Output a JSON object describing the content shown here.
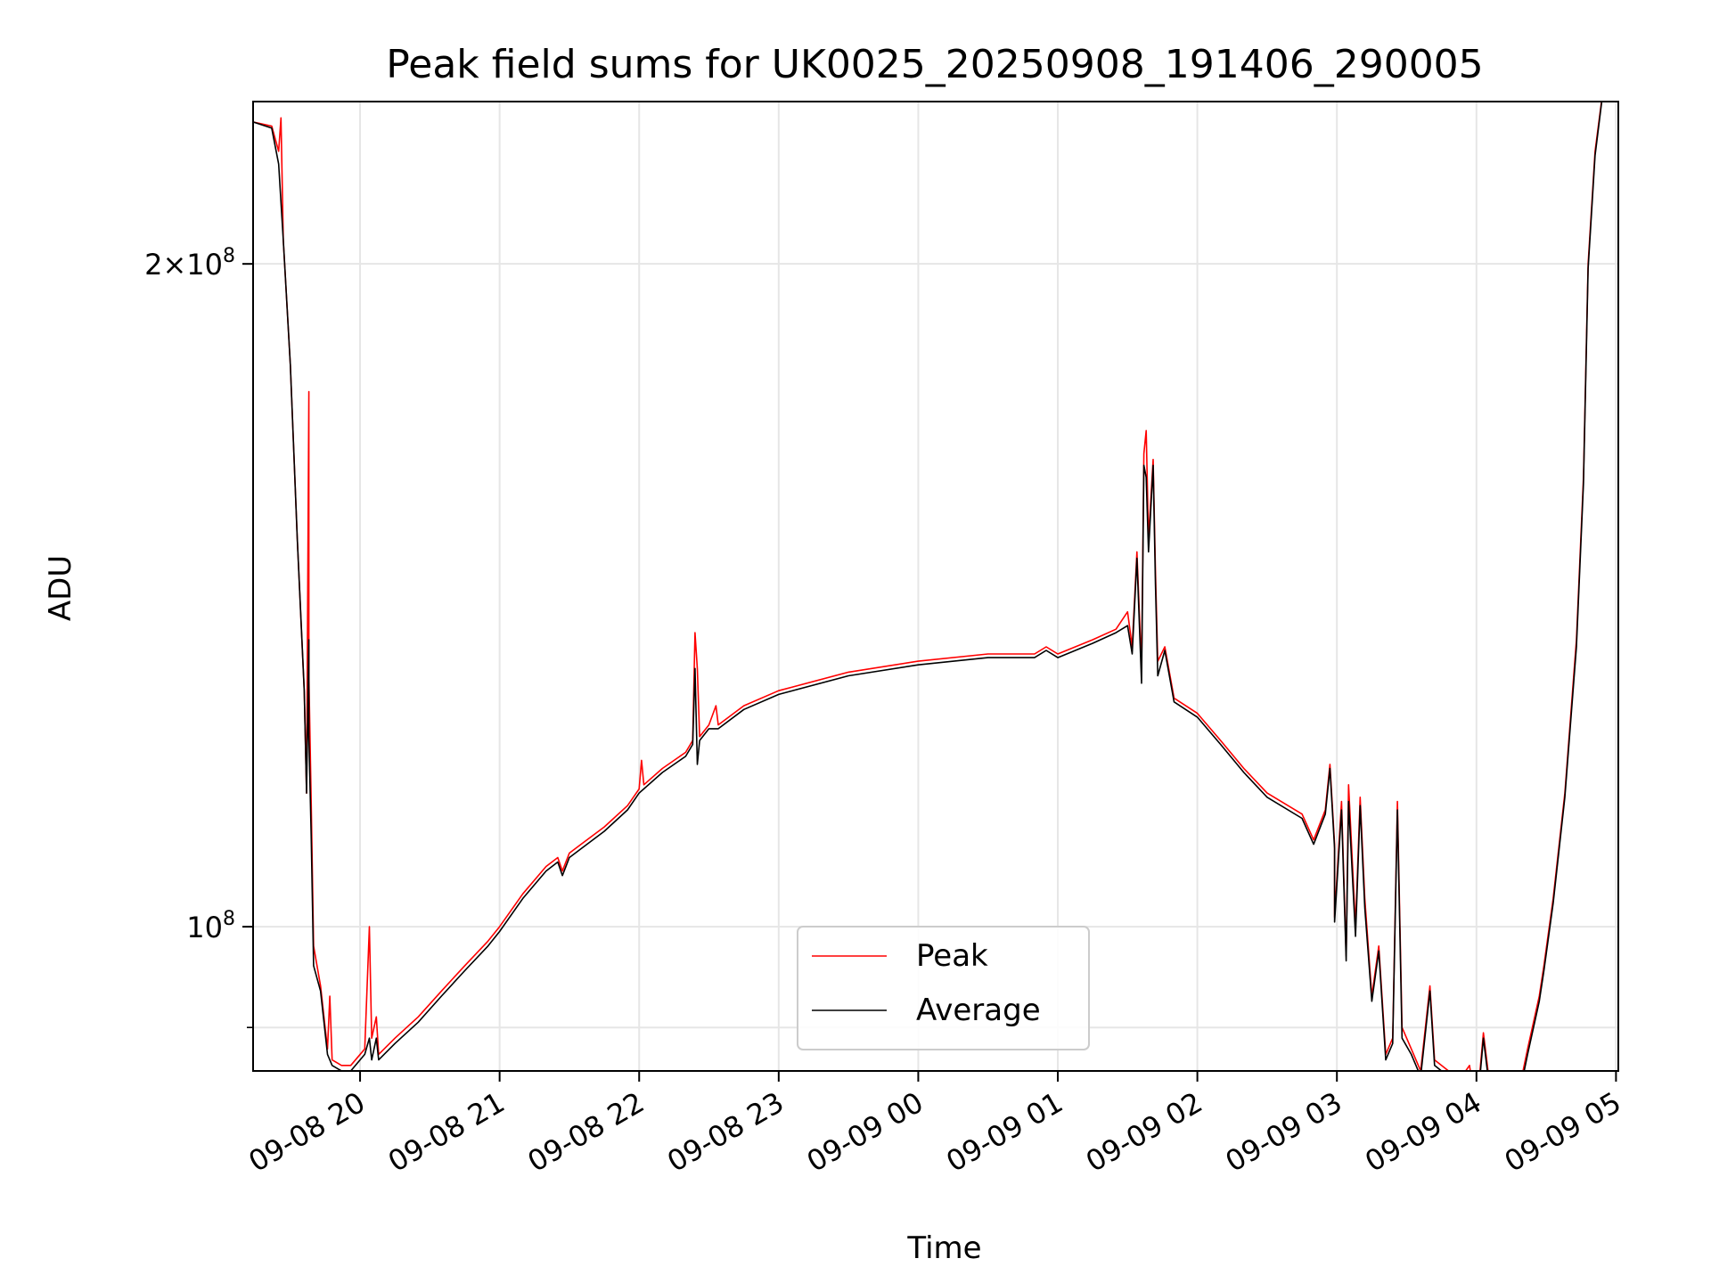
{
  "chart_data": {
    "type": "line",
    "title": "Peak field sums for UK0025_20250908_191406_290005",
    "xlabel": "Time",
    "ylabel": "ADU",
    "yscale": "log",
    "xlim": [
      "2025-09-08 19:14",
      "2025-09-09 05:01"
    ],
    "ylim": [
      86000000.0,
      237000000.0
    ],
    "grid": true,
    "legend_placement": "lower-center",
    "x_ticks": [
      "09-08 20",
      "09-08 21",
      "09-08 22",
      "09-08 23",
      "09-09 00",
      "09-09 01",
      "09-09 02",
      "09-09 03",
      "09-09 04",
      "09-09 05"
    ],
    "x_tick_times": [
      "2025-09-08 20:00",
      "2025-09-08 21:00",
      "2025-09-08 22:00",
      "2025-09-08 23:00",
      "2025-09-09 00:00",
      "2025-09-09 01:00",
      "2025-09-09 02:00",
      "2025-09-09 03:00",
      "2025-09-09 04:00",
      "2025-09-09 05:00"
    ],
    "y_ticks": [
      {
        "value": 200000000,
        "mantissa": "2",
        "exponent": "8"
      },
      {
        "value": 100000000,
        "mantissa": "",
        "exponent": "8"
      }
    ],
    "y_minor_ticks": [
      90000000
    ],
    "series": [
      {
        "name": "Peak",
        "color": "#ff0000",
        "points": [
          [
            "2025-09-08 19:14",
            232000000
          ],
          [
            "2025-09-08 19:22",
            231000000
          ],
          [
            "2025-09-08 19:25",
            225000000
          ],
          [
            "2025-09-08 19:26",
            233000000
          ],
          [
            "2025-09-08 19:27",
            205000000
          ],
          [
            "2025-09-08 19:30",
            180000000
          ],
          [
            "2025-09-08 19:33",
            150000000
          ],
          [
            "2025-09-08 19:36",
            128000000
          ],
          [
            "2025-09-08 19:37",
            115000000
          ],
          [
            "2025-09-08 19:38",
            175000000
          ],
          [
            "2025-09-08 19:38",
            130000000
          ],
          [
            "2025-09-08 19:39",
            114000000
          ],
          [
            "2025-09-08 19:40",
            98000000
          ],
          [
            "2025-09-08 19:43",
            94000000
          ],
          [
            "2025-09-08 19:46",
            88000000
          ],
          [
            "2025-09-08 19:47",
            93000000
          ],
          [
            "2025-09-08 19:48",
            87000000
          ],
          [
            "2025-09-08 19:52",
            86500000
          ],
          [
            "2025-09-08 19:56",
            86500000
          ],
          [
            "2025-09-08 20:02",
            88000000
          ],
          [
            "2025-09-08 20:04",
            100000000
          ],
          [
            "2025-09-08 20:05",
            89000000
          ],
          [
            "2025-09-08 20:07",
            91000000
          ],
          [
            "2025-09-08 20:08",
            87500000
          ],
          [
            "2025-09-08 20:15",
            89000000
          ],
          [
            "2025-09-08 20:25",
            91000000
          ],
          [
            "2025-09-08 20:35",
            93500000
          ],
          [
            "2025-09-08 20:45",
            96000000
          ],
          [
            "2025-09-08 20:55",
            98500000
          ],
          [
            "2025-09-08 21:00",
            100000000
          ],
          [
            "2025-09-08 21:10",
            103500000
          ],
          [
            "2025-09-08 21:20",
            106500000
          ],
          [
            "2025-09-08 21:25",
            107500000
          ],
          [
            "2025-09-08 21:27",
            106000000
          ],
          [
            "2025-09-08 21:30",
            108000000
          ],
          [
            "2025-09-08 21:35",
            109000000
          ],
          [
            "2025-09-08 21:45",
            111000000
          ],
          [
            "2025-09-08 21:55",
            113500000
          ],
          [
            "2025-09-08 22:00",
            115500000
          ],
          [
            "2025-09-08 22:01",
            119000000
          ],
          [
            "2025-09-08 22:02",
            116000000
          ],
          [
            "2025-09-08 22:10",
            118000000
          ],
          [
            "2025-09-08 22:20",
            120000000
          ],
          [
            "2025-09-08 22:23",
            121500000
          ],
          [
            "2025-09-08 22:24",
            136000000
          ],
          [
            "2025-09-08 22:25",
            131000000
          ],
          [
            "2025-09-08 22:26",
            122000000
          ],
          [
            "2025-09-08 22:30",
            123500000
          ],
          [
            "2025-09-08 22:33",
            126000000
          ],
          [
            "2025-09-08 22:34",
            123500000
          ],
          [
            "2025-09-08 22:45",
            126000000
          ],
          [
            "2025-09-08 23:00",
            128000000
          ],
          [
            "2025-09-08 23:30",
            130500000
          ],
          [
            "2025-09-09 00:00",
            132000000
          ],
          [
            "2025-09-09 00:30",
            133000000
          ],
          [
            "2025-09-09 00:50",
            133000000
          ],
          [
            "2025-09-09 00:55",
            134000000
          ],
          [
            "2025-09-09 01:00",
            133000000
          ],
          [
            "2025-09-09 01:15",
            135000000
          ],
          [
            "2025-09-09 01:25",
            136500000
          ],
          [
            "2025-09-09 01:30",
            139000000
          ],
          [
            "2025-09-09 01:32",
            134000000
          ],
          [
            "2025-09-09 01:34",
            148000000
          ],
          [
            "2025-09-09 01:36",
            131000000
          ],
          [
            "2025-09-09 01:37",
            164000000
          ],
          [
            "2025-09-09 01:38",
            168000000
          ],
          [
            "2025-09-09 01:39",
            150000000
          ],
          [
            "2025-09-09 01:41",
            163000000
          ],
          [
            "2025-09-09 01:42",
            145000000
          ],
          [
            "2025-09-09 01:43",
            132000000
          ],
          [
            "2025-09-09 01:46",
            134000000
          ],
          [
            "2025-09-09 01:50",
            127000000
          ],
          [
            "2025-09-09 02:00",
            125000000
          ],
          [
            "2025-09-09 02:10",
            121500000
          ],
          [
            "2025-09-09 02:20",
            118000000
          ],
          [
            "2025-09-09 02:30",
            115000000
          ],
          [
            "2025-09-09 02:45",
            112500000
          ],
          [
            "2025-09-09 02:50",
            109500000
          ],
          [
            "2025-09-09 02:55",
            113000000
          ],
          [
            "2025-09-09 02:57",
            118500000
          ],
          [
            "2025-09-09 02:59",
            109000000
          ],
          [
            "2025-09-09 02:59",
            101000000
          ],
          [
            "2025-09-09 03:02",
            114000000
          ],
          [
            "2025-09-09 03:04",
            97000000
          ],
          [
            "2025-09-09 03:05",
            116000000
          ],
          [
            "2025-09-09 03:08",
            100000000
          ],
          [
            "2025-09-09 03:10",
            114500000
          ],
          [
            "2025-09-09 03:12",
            103000000
          ],
          [
            "2025-09-09 03:15",
            93000000
          ],
          [
            "2025-09-09 03:18",
            98000000
          ],
          [
            "2025-09-09 03:21",
            87500000
          ],
          [
            "2025-09-09 03:24",
            89000000
          ],
          [
            "2025-09-09 03:26",
            114000000
          ],
          [
            "2025-09-09 03:28",
            90000000
          ],
          [
            "2025-09-09 03:32",
            88000000
          ],
          [
            "2025-09-09 03:36",
            86000000
          ],
          [
            "2025-09-09 03:40",
            94000000
          ],
          [
            "2025-09-09 03:42",
            87000000
          ],
          [
            "2025-09-09 03:48",
            86000000
          ],
          [
            "2025-09-09 03:52",
            85000000
          ],
          [
            "2025-09-09 03:57",
            86500000
          ],
          [
            "2025-09-09 04:00",
            82500000
          ],
          [
            "2025-09-09 04:03",
            89500000
          ],
          [
            "2025-09-09 04:05",
            86000000
          ],
          [
            "2025-09-09 04:08",
            84500000
          ],
          [
            "2025-09-09 04:11",
            86000000
          ],
          [
            "2025-09-09 04:14",
            83500000
          ],
          [
            "2025-09-09 04:18",
            84000000
          ],
          [
            "2025-09-09 04:22",
            88000000
          ],
          [
            "2025-09-09 04:27",
            93000000
          ],
          [
            "2025-09-09 04:29",
            96000000
          ],
          [
            "2025-09-09 04:33",
            103000000
          ],
          [
            "2025-09-09 04:38",
            115000000
          ],
          [
            "2025-09-09 04:43",
            135000000
          ],
          [
            "2025-09-09 04:46",
            160000000
          ],
          [
            "2025-09-09 04:48",
            200000000
          ],
          [
            "2025-09-09 04:51",
            225000000
          ],
          [
            "2025-09-09 04:54",
            238000000
          ],
          [
            "2025-09-09 05:01",
            238000000
          ]
        ]
      },
      {
        "name": "Average",
        "color": "#000000",
        "points": [
          [
            "2025-09-08 19:14",
            232000000
          ],
          [
            "2025-09-08 19:22",
            230500000
          ],
          [
            "2025-09-08 19:25",
            222000000
          ],
          [
            "2025-09-08 19:27",
            205000000
          ],
          [
            "2025-09-08 19:30",
            180000000
          ],
          [
            "2025-09-08 19:33",
            150000000
          ],
          [
            "2025-09-08 19:36",
            128000000
          ],
          [
            "2025-09-08 19:37",
            115000000
          ],
          [
            "2025-09-08 19:38",
            135000000
          ],
          [
            "2025-09-08 19:38",
            122000000
          ],
          [
            "2025-09-08 19:39",
            110000000
          ],
          [
            "2025-09-08 19:40",
            96000000
          ],
          [
            "2025-09-08 19:43",
            93500000
          ],
          [
            "2025-09-08 19:46",
            87500000
          ],
          [
            "2025-09-08 19:48",
            86500000
          ],
          [
            "2025-09-08 19:52",
            86000000
          ],
          [
            "2025-09-08 19:56",
            86000000
          ],
          [
            "2025-09-08 20:02",
            87500000
          ],
          [
            "2025-09-08 20:04",
            89000000
          ],
          [
            "2025-09-08 20:05",
            87000000
          ],
          [
            "2025-09-08 20:07",
            89000000
          ],
          [
            "2025-09-08 20:08",
            87000000
          ],
          [
            "2025-09-08 20:15",
            88500000
          ],
          [
            "2025-09-08 20:25",
            90500000
          ],
          [
            "2025-09-08 20:35",
            93000000
          ],
          [
            "2025-09-08 20:45",
            95500000
          ],
          [
            "2025-09-08 20:55",
            98000000
          ],
          [
            "2025-09-08 21:00",
            99500000
          ],
          [
            "2025-09-08 21:10",
            103000000
          ],
          [
            "2025-09-08 21:20",
            106000000
          ],
          [
            "2025-09-08 21:25",
            107000000
          ],
          [
            "2025-09-08 21:27",
            105500000
          ],
          [
            "2025-09-08 21:30",
            107500000
          ],
          [
            "2025-09-08 21:35",
            108500000
          ],
          [
            "2025-09-08 21:45",
            110500000
          ],
          [
            "2025-09-08 21:55",
            113000000
          ],
          [
            "2025-09-08 22:00",
            115000000
          ],
          [
            "2025-09-08 22:10",
            117500000
          ],
          [
            "2025-09-08 22:20",
            119500000
          ],
          [
            "2025-09-08 22:23",
            121000000
          ],
          [
            "2025-09-08 22:24",
            131000000
          ],
          [
            "2025-09-08 22:25",
            118500000
          ],
          [
            "2025-09-08 22:26",
            121500000
          ],
          [
            "2025-09-08 22:30",
            123000000
          ],
          [
            "2025-09-08 22:34",
            123000000
          ],
          [
            "2025-09-08 22:45",
            125500000
          ],
          [
            "2025-09-08 23:00",
            127500000
          ],
          [
            "2025-09-08 23:30",
            130000000
          ],
          [
            "2025-09-09 00:00",
            131500000
          ],
          [
            "2025-09-09 00:30",
            132500000
          ],
          [
            "2025-09-09 00:50",
            132500000
          ],
          [
            "2025-09-09 00:55",
            133500000
          ],
          [
            "2025-09-09 01:00",
            132500000
          ],
          [
            "2025-09-09 01:15",
            134500000
          ],
          [
            "2025-09-09 01:25",
            136000000
          ],
          [
            "2025-09-09 01:30",
            137000000
          ],
          [
            "2025-09-09 01:32",
            133000000
          ],
          [
            "2025-09-09 01:34",
            147000000
          ],
          [
            "2025-09-09 01:36",
            129000000
          ],
          [
            "2025-09-09 01:37",
            162000000
          ],
          [
            "2025-09-09 01:38",
            160000000
          ],
          [
            "2025-09-09 01:39",
            148000000
          ],
          [
            "2025-09-09 01:41",
            162000000
          ],
          [
            "2025-09-09 01:42",
            143000000
          ],
          [
            "2025-09-09 01:43",
            130000000
          ],
          [
            "2025-09-09 01:46",
            133500000
          ],
          [
            "2025-09-09 01:50",
            126500000
          ],
          [
            "2025-09-09 02:00",
            124500000
          ],
          [
            "2025-09-09 02:10",
            121000000
          ],
          [
            "2025-09-09 02:20",
            117500000
          ],
          [
            "2025-09-09 02:30",
            114500000
          ],
          [
            "2025-09-09 02:45",
            112000000
          ],
          [
            "2025-09-09 02:50",
            109000000
          ],
          [
            "2025-09-09 02:55",
            112500000
          ],
          [
            "2025-09-09 02:57",
            118000000
          ],
          [
            "2025-09-09 02:59",
            108500000
          ],
          [
            "2025-09-09 02:59",
            100500000
          ],
          [
            "2025-09-09 03:02",
            113000000
          ],
          [
            "2025-09-09 03:04",
            96500000
          ],
          [
            "2025-09-09 03:05",
            114000000
          ],
          [
            "2025-09-09 03:08",
            99000000
          ],
          [
            "2025-09-09 03:10",
            113500000
          ],
          [
            "2025-09-09 03:12",
            102000000
          ],
          [
            "2025-09-09 03:15",
            92500000
          ],
          [
            "2025-09-09 03:18",
            97500000
          ],
          [
            "2025-09-09 03:21",
            87000000
          ],
          [
            "2025-09-09 03:24",
            88500000
          ],
          [
            "2025-09-09 03:26",
            113000000
          ],
          [
            "2025-09-09 03:28",
            89000000
          ],
          [
            "2025-09-09 03:32",
            87500000
          ],
          [
            "2025-09-09 03:36",
            85500000
          ],
          [
            "2025-09-09 03:40",
            93500000
          ],
          [
            "2025-09-09 03:42",
            86500000
          ],
          [
            "2025-09-09 03:48",
            85500000
          ],
          [
            "2025-09-09 03:52",
            84500000
          ],
          [
            "2025-09-09 03:57",
            86000000
          ],
          [
            "2025-09-09 04:00",
            82000000
          ],
          [
            "2025-09-09 04:03",
            89000000
          ],
          [
            "2025-09-09 04:05",
            85500000
          ],
          [
            "2025-09-09 04:08",
            84000000
          ],
          [
            "2025-09-09 04:11",
            85500000
          ],
          [
            "2025-09-09 04:14",
            83000000
          ],
          [
            "2025-09-09 04:18",
            83500000
          ],
          [
            "2025-09-09 04:22",
            87500000
          ],
          [
            "2025-09-09 04:27",
            92500000
          ],
          [
            "2025-09-09 04:29",
            95500000
          ],
          [
            "2025-09-09 04:33",
            102500000
          ],
          [
            "2025-09-09 04:38",
            114500000
          ],
          [
            "2025-09-09 04:43",
            134000000
          ],
          [
            "2025-09-09 04:46",
            159000000
          ],
          [
            "2025-09-09 04:48",
            199000000
          ],
          [
            "2025-09-09 04:51",
            224000000
          ],
          [
            "2025-09-09 04:54",
            237500000
          ],
          [
            "2025-09-09 05:01",
            237500000
          ]
        ]
      }
    ]
  }
}
